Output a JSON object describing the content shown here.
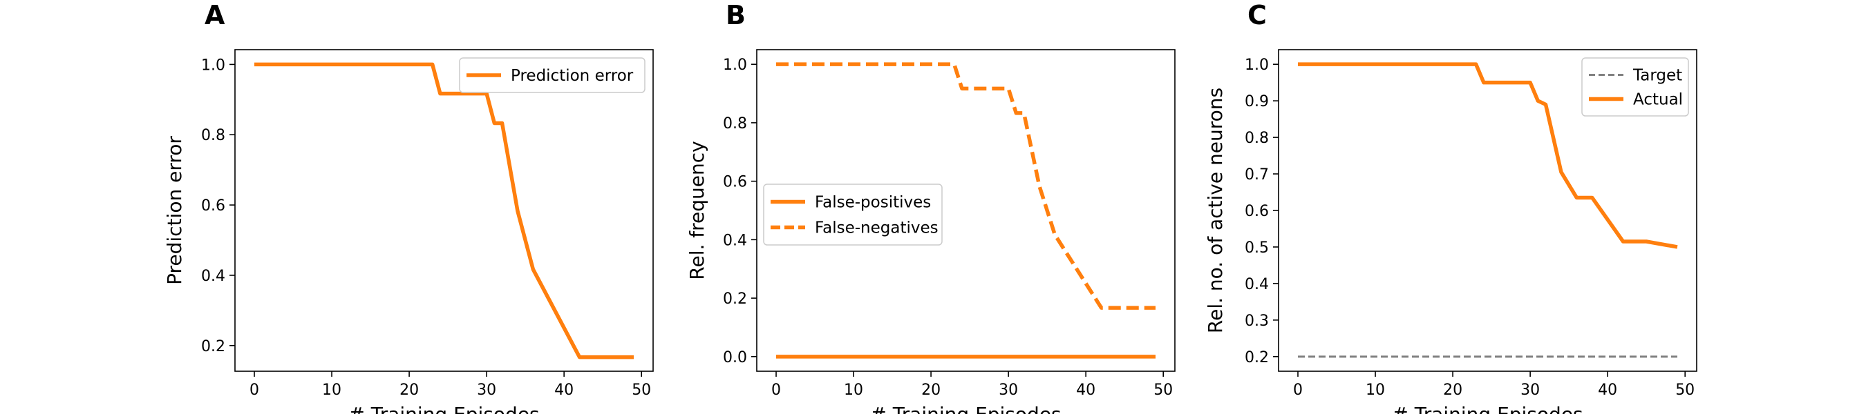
{
  "chart_data": [
    {
      "type": "line",
      "panel_label": "A",
      "xlabel": "# Training Episodes",
      "ylabel": "Prediction error",
      "xlim": [
        -2.5,
        51.5
      ],
      "ylim": [
        0.127,
        1.042
      ],
      "xticks": [
        0,
        10,
        20,
        30,
        40,
        50
      ],
      "yticks": [
        0.2,
        0.4,
        0.6,
        0.8,
        1.0
      ],
      "ytick_labels": [
        "0.2",
        "0.4",
        "0.6",
        "0.8",
        "1.0"
      ],
      "grid": false,
      "legend_position": "top-right",
      "series": [
        {
          "name": "Prediction error",
          "color": "#ff7f0e",
          "style": "solid",
          "x": [
            0,
            23,
            24,
            30,
            31,
            32,
            34,
            36,
            42,
            49
          ],
          "y": [
            1.0,
            1.0,
            0.917,
            0.917,
            0.833,
            0.833,
            0.583,
            0.417,
            0.167,
            0.167
          ]
        }
      ]
    },
    {
      "type": "line",
      "panel_label": "B",
      "xlabel": "# Training Episodes",
      "ylabel": "Rel. frequency",
      "xlim": [
        -2.5,
        51.5
      ],
      "ylim": [
        -0.05,
        1.05
      ],
      "xticks": [
        0,
        10,
        20,
        30,
        40,
        50
      ],
      "yticks": [
        0.0,
        0.2,
        0.4,
        0.6,
        0.8,
        1.0
      ],
      "ytick_labels": [
        "0.0",
        "0.2",
        "0.4",
        "0.6",
        "0.8",
        "1.0"
      ],
      "grid": false,
      "legend_position": "center-left",
      "series": [
        {
          "name": "False-positives",
          "color": "#ff7f0e",
          "style": "solid",
          "x": [
            0,
            49
          ],
          "y": [
            0.0,
            0.0
          ]
        },
        {
          "name": "False-negatives",
          "color": "#ff7f0e",
          "style": "dashed",
          "x": [
            0,
            23,
            24,
            30,
            31,
            32,
            34,
            36,
            42,
            49
          ],
          "y": [
            1.0,
            1.0,
            0.917,
            0.917,
            0.833,
            0.833,
            0.583,
            0.417,
            0.167,
            0.167
          ]
        }
      ]
    },
    {
      "type": "line",
      "panel_label": "C",
      "xlabel": "# Training Episodes",
      "ylabel": "Rel. no. of active neurons",
      "xlim": [
        -2.5,
        51.5
      ],
      "ylim": [
        0.16,
        1.04
      ],
      "xticks": [
        0,
        10,
        20,
        30,
        40,
        50
      ],
      "yticks": [
        0.2,
        0.3,
        0.4,
        0.5,
        0.6,
        0.7,
        0.8,
        0.9,
        1.0
      ],
      "ytick_labels": [
        "0.2",
        "0.3",
        "0.4",
        "0.5",
        "0.6",
        "0.7",
        "0.8",
        "0.9",
        "1.0"
      ],
      "grid": false,
      "legend_position": "top-right",
      "series": [
        {
          "name": "Target",
          "color": "#808080",
          "style": "dashed-thin",
          "x": [
            0,
            49
          ],
          "y": [
            0.2,
            0.2
          ]
        },
        {
          "name": "Actual",
          "color": "#ff7f0e",
          "style": "solid",
          "x": [
            0,
            23,
            24,
            30,
            31,
            32,
            34,
            36,
            38,
            42,
            45,
            49
          ],
          "y": [
            1.0,
            1.0,
            0.95,
            0.95,
            0.9,
            0.89,
            0.705,
            0.635,
            0.635,
            0.515,
            0.515,
            0.5
          ]
        }
      ]
    }
  ]
}
